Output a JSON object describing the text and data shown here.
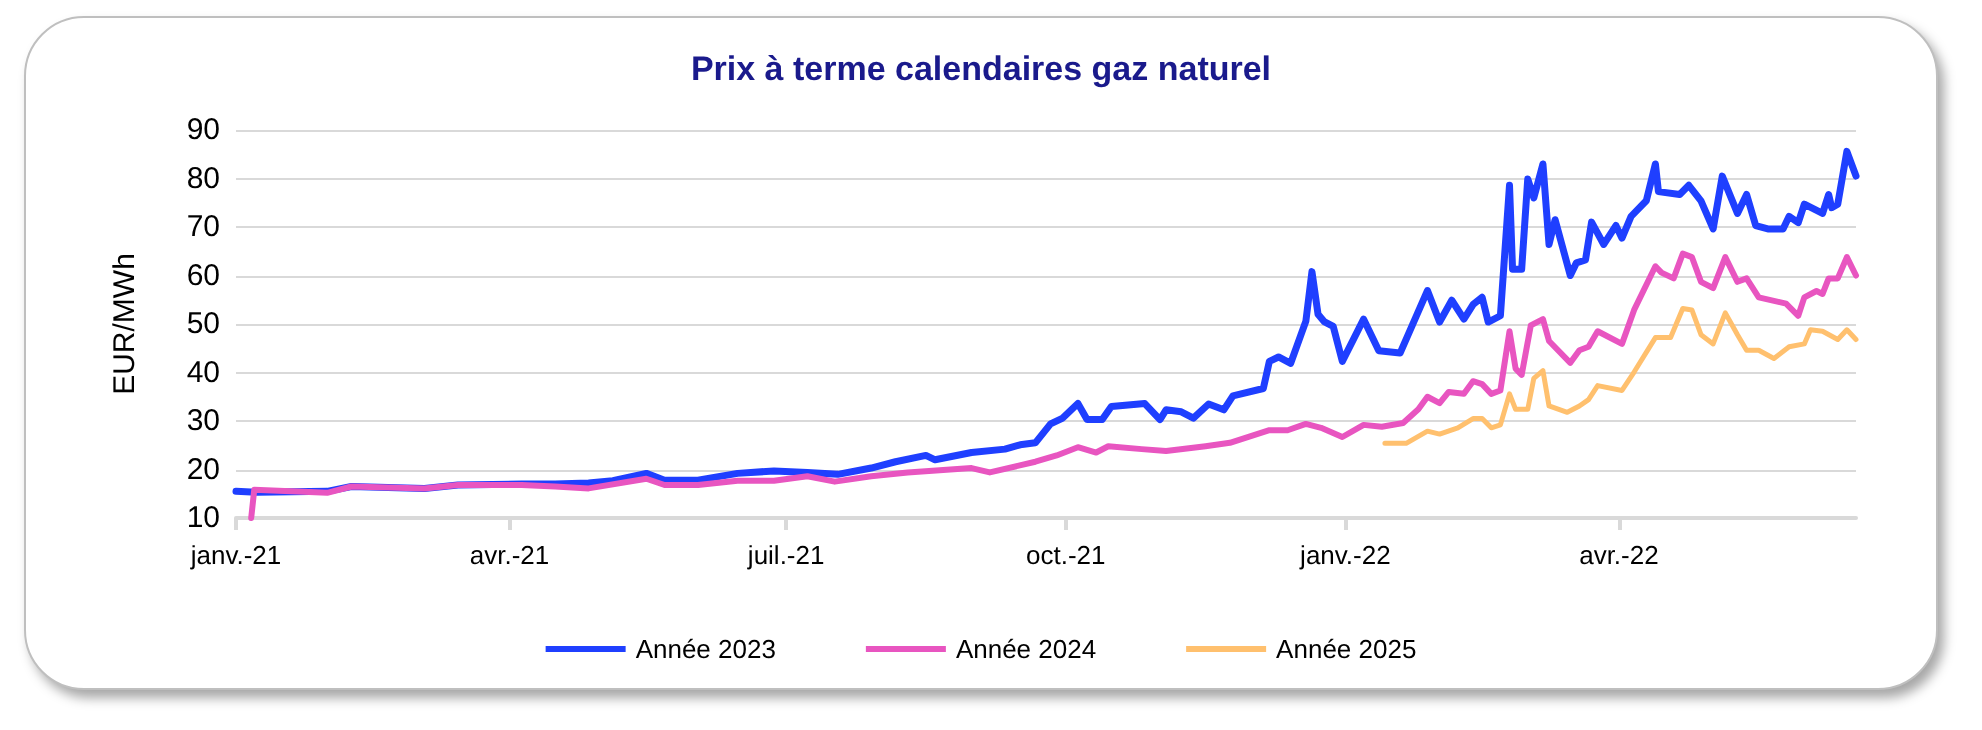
{
  "chart_data": {
    "type": "line",
    "title": "Prix à terme calendaires gaz naturel",
    "ylabel": "EUR/MWh",
    "xlim": [
      "2021-01-01",
      "2022-06-18"
    ],
    "xticks": [
      {
        "value": "2021-01-01",
        "label": "janv.-21"
      },
      {
        "value": "2021-04-01",
        "label": "avr.-21"
      },
      {
        "value": "2021-07-01",
        "label": "juil.-21"
      },
      {
        "value": "2021-10-01",
        "label": "oct.-21"
      },
      {
        "value": "2022-01-01",
        "label": "janv.-22"
      },
      {
        "value": "2022-04-01",
        "label": "avr.-22"
      }
    ],
    "ylim": [
      10,
      90
    ],
    "yticks": [
      10,
      20,
      30,
      40,
      50,
      60,
      70,
      80,
      90
    ],
    "grid": "y",
    "legend": "bottom",
    "line_style": "solid",
    "series": [
      {
        "name": "Année 2023",
        "color": "#1f3fff",
        "x": [
          "2021-01-01",
          "2021-01-08",
          "2021-01-31",
          "2021-02-08",
          "2021-03-04",
          "2021-03-15",
          "2021-04-05",
          "2021-04-16",
          "2021-04-27",
          "2021-05-05",
          "2021-05-16",
          "2021-05-22",
          "2021-06-02",
          "2021-06-15",
          "2021-06-27",
          "2021-07-08",
          "2021-07-18",
          "2021-07-29",
          "2021-08-06",
          "2021-08-16",
          "2021-08-19",
          "2021-08-31",
          "2021-09-11",
          "2021-09-16",
          "2021-09-21",
          "2021-09-26",
          "2021-09-30",
          "2021-10-05",
          "2021-10-08",
          "2021-10-13",
          "2021-10-16",
          "2021-10-27",
          "2021-11-01",
          "2021-11-03",
          "2021-11-08",
          "2021-11-12",
          "2021-11-17",
          "2021-11-22",
          "2021-11-25",
          "2021-12-05",
          "2021-12-07",
          "2021-12-10",
          "2021-12-14",
          "2021-12-19",
          "2021-12-21",
          "2021-12-23",
          "2021-12-25",
          "2021-12-28",
          "2021-12-31",
          "2022-01-07",
          "2022-01-12",
          "2022-01-19",
          "2022-01-28",
          "2022-02-01",
          "2022-02-05",
          "2022-02-09",
          "2022-02-12",
          "2022-02-15",
          "2022-02-17",
          "2022-02-21",
          "2022-02-24",
          "2022-02-25",
          "2022-02-28",
          "2022-03-02",
          "2022-03-04",
          "2022-03-07",
          "2022-03-09",
          "2022-03-11",
          "2022-03-16",
          "2022-03-18",
          "2022-03-21",
          "2022-03-23",
          "2022-03-27",
          "2022-03-31",
          "2022-04-02",
          "2022-04-05",
          "2022-04-10",
          "2022-04-13",
          "2022-04-14",
          "2022-04-21",
          "2022-04-24",
          "2022-04-28",
          "2022-05-02",
          "2022-05-05",
          "2022-05-10",
          "2022-05-13",
          "2022-05-16",
          "2022-05-20",
          "2022-05-25",
          "2022-05-27",
          "2022-05-30",
          "2022-06-01",
          "2022-06-07",
          "2022-06-09",
          "2022-06-10",
          "2022-06-12",
          "2022-06-15",
          "2022-06-18"
        ],
        "values": [
          15.5,
          15.3,
          15.5,
          16.5,
          16.1,
          16.8,
          17,
          17,
          17.2,
          17.7,
          19.2,
          17.8,
          17.8,
          19.2,
          19.7,
          19.4,
          19,
          20.3,
          21.6,
          22.9,
          22,
          23.5,
          24.2,
          25.1,
          25.5,
          29.4,
          30.6,
          33.6,
          30.3,
          30.3,
          33,
          33.6,
          30.3,
          32.3,
          31.9,
          30.6,
          33.5,
          32.3,
          35.2,
          36.7,
          42.3,
          43.2,
          41.9,
          50.6,
          60.8,
          52,
          50.5,
          49.5,
          42.3,
          51,
          44.5,
          44,
          56.9,
          50.4,
          54.9,
          51,
          54,
          55.5,
          50.4,
          51.7,
          78.6,
          61.3,
          61.3,
          79.9,
          76,
          83,
          66.4,
          71.5,
          60,
          62.6,
          63.2,
          71,
          66.4,
          70.3,
          67.7,
          72.2,
          75.4,
          83,
          77.3,
          76.7,
          78.6,
          75.4,
          69.6,
          80.5,
          72.8,
          76.7,
          70.3,
          69.6,
          69.6,
          72.2,
          70.9,
          74.7,
          72.8,
          76.7,
          74,
          74.7,
          85.6,
          80.5
        ]
      },
      {
        "name": "Année 2024",
        "color": "#e855c0",
        "x": [
          "2021-01-06",
          "2021-01-07",
          "2021-01-31",
          "2021-02-08",
          "2021-03-04",
          "2021-03-15",
          "2021-04-05",
          "2021-04-16",
          "2021-04-27",
          "2021-05-16",
          "2021-05-22",
          "2021-06-02",
          "2021-06-15",
          "2021-06-27",
          "2021-07-08",
          "2021-07-17",
          "2021-07-29",
          "2021-08-10",
          "2021-08-31",
          "2021-09-06",
          "2021-09-21",
          "2021-09-28",
          "2021-10-05",
          "2021-10-11",
          "2021-10-15",
          "2021-10-26",
          "2021-11-03",
          "2021-11-16",
          "2021-11-24",
          "2021-12-07",
          "2021-12-13",
          "2021-12-19",
          "2021-12-24",
          "2021-12-31",
          "2022-01-07",
          "2022-01-13",
          "2022-01-20",
          "2022-01-25",
          "2022-01-28",
          "2022-02-01",
          "2022-02-04",
          "2022-02-09",
          "2022-02-12",
          "2022-02-15",
          "2022-02-18",
          "2022-02-21",
          "2022-02-24",
          "2022-02-26",
          "2022-02-28",
          "2022-03-03",
          "2022-03-07",
          "2022-03-09",
          "2022-03-16",
          "2022-03-19",
          "2022-03-22",
          "2022-03-25",
          "2022-04-02",
          "2022-04-06",
          "2022-04-13",
          "2022-04-15",
          "2022-04-19",
          "2022-04-22",
          "2022-04-25",
          "2022-04-28",
          "2022-05-02",
          "2022-05-06",
          "2022-05-10",
          "2022-05-13",
          "2022-05-17",
          "2022-05-26",
          "2022-05-30",
          "2022-06-01",
          "2022-06-05",
          "2022-06-07",
          "2022-06-09",
          "2022-06-12",
          "2022-06-15",
          "2022-06-18"
        ],
        "values": [
          10,
          15.8,
          15.2,
          16.5,
          16.1,
          16.8,
          16.8,
          16.5,
          16.1,
          18.1,
          16.8,
          16.8,
          17.7,
          17.7,
          18.6,
          17.5,
          18.6,
          19.4,
          20.3,
          19.4,
          21.6,
          22.9,
          24.6,
          23.5,
          24.8,
          24.2,
          23.8,
          24.8,
          25.5,
          28.1,
          28.1,
          29.4,
          28.6,
          26.7,
          29.2,
          28.8,
          29.6,
          32.4,
          35,
          33.7,
          36,
          35.6,
          38.2,
          37.6,
          35.6,
          36.3,
          48.5,
          40.8,
          39.5,
          49.7,
          51,
          46.5,
          42,
          44.6,
          45.3,
          48.5,
          45.9,
          52.9,
          61.9,
          60.6,
          59.4,
          64.5,
          63.8,
          58.7,
          57.4,
          63.8,
          58.7,
          59.4,
          55.5,
          54.2,
          51.7,
          55.5,
          56.8,
          56.2,
          59.4,
          59.4,
          63.8,
          60
        ]
      },
      {
        "name": "Année 2025",
        "color": "#ffc06e",
        "x": [
          "2022-01-14",
          "2022-01-21",
          "2022-01-28",
          "2022-02-01",
          "2022-02-07",
          "2022-02-12",
          "2022-02-15",
          "2022-02-18",
          "2022-02-21",
          "2022-02-24",
          "2022-02-26",
          "2022-03-02",
          "2022-03-04",
          "2022-03-07",
          "2022-03-09",
          "2022-03-15",
          "2022-03-19",
          "2022-03-22",
          "2022-03-25",
          "2022-04-02",
          "2022-04-06",
          "2022-04-13",
          "2022-04-18",
          "2022-04-22",
          "2022-04-25",
          "2022-04-28",
          "2022-05-02",
          "2022-05-06",
          "2022-05-10",
          "2022-05-13",
          "2022-05-17",
          "2022-05-22",
          "2022-05-27",
          "2022-06-01",
          "2022-06-03",
          "2022-06-07",
          "2022-06-12",
          "2022-06-15",
          "2022-06-18"
        ],
        "values": [
          25.4,
          25.4,
          27.9,
          27.3,
          28.6,
          30.5,
          30.5,
          28.6,
          29.2,
          35.6,
          32.4,
          32.4,
          38.8,
          40.4,
          33.1,
          31.8,
          33.1,
          34.4,
          37.3,
          36.3,
          40.1,
          47.2,
          47.2,
          53.2,
          52.9,
          47.8,
          45.9,
          52.3,
          47.8,
          44.6,
          44.6,
          42.9,
          45.3,
          45.9,
          48.8,
          48.5,
          46.8,
          48.8,
          46.8
        ]
      }
    ]
  }
}
